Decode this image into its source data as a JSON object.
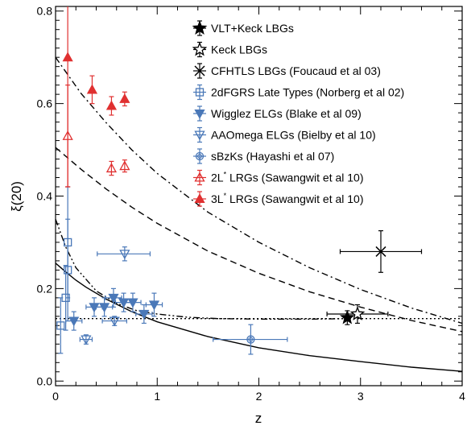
{
  "chart_data": {
    "type": "scatter",
    "xlabel": "z",
    "ylabel_main": "ξ",
    "ylabel_arg": "(20)",
    "xlim": [
      0,
      4
    ],
    "ylim": [
      -0.01,
      0.81
    ],
    "xticks": [
      {
        "value": 0,
        "label": "0"
      },
      {
        "value": 1,
        "label": "1"
      },
      {
        "value": 2,
        "label": "2"
      },
      {
        "value": 3,
        "label": "3"
      },
      {
        "value": 4,
        "label": "4"
      }
    ],
    "yticks": [
      {
        "value": 0.0,
        "label": "0.0"
      },
      {
        "value": 0.2,
        "label": "0.2"
      },
      {
        "value": 0.4,
        "label": "0.4"
      },
      {
        "value": 0.6,
        "label": "0.6"
      },
      {
        "value": 0.8,
        "label": "0.8"
      }
    ],
    "legend_position": "top-center",
    "series": [
      {
        "name": "VLT+Keck LBGs",
        "color": "#000000",
        "marker": "star-filled",
        "points": [
          {
            "x": 2.87,
            "y": 0.137,
            "xlo": 2.87,
            "xhi": 2.87,
            "ylo": 0.122,
            "yhi": 0.152
          }
        ]
      },
      {
        "name": "Keck LBGs",
        "color": "#000000",
        "marker": "star-open",
        "points": [
          {
            "x": 2.97,
            "y": 0.145,
            "xlo": 2.67,
            "xhi": 3.27,
            "ylo": 0.125,
            "yhi": 0.165
          }
        ]
      },
      {
        "name": "CFHTLS LBGs (Foucaud et al 03)",
        "color": "#000000",
        "marker": "asterisk",
        "points": [
          {
            "x": 3.2,
            "y": 0.28,
            "xlo": 2.8,
            "xhi": 3.6,
            "ylo": 0.235,
            "yhi": 0.325
          }
        ]
      },
      {
        "name": "2dFGRS Late Types (Norberg et al 02)",
        "color": "#4a78b8",
        "marker": "square-open",
        "points": [
          {
            "x": 0.05,
            "y": 0.12,
            "xlo": 0.05,
            "xhi": 0.05,
            "ylo": 0.06,
            "yhi": 0.18
          },
          {
            "x": 0.1,
            "y": 0.18,
            "xlo": 0.1,
            "xhi": 0.1,
            "ylo": 0.11,
            "yhi": 0.25
          },
          {
            "x": 0.12,
            "y": 0.24,
            "xlo": 0.12,
            "xhi": 0.12,
            "ylo": 0.13,
            "yhi": 0.35
          },
          {
            "x": 0.12,
            "y": 0.3,
            "xlo": 0.12,
            "xhi": 0.12,
            "ylo": 0.18,
            "yhi": 0.42
          }
        ]
      },
      {
        "name": "Wigglez ELGs (Blake et al 09)",
        "color": "#4a78b8",
        "marker": "down-triangle-filled",
        "points": [
          {
            "x": 0.18,
            "y": 0.13,
            "xlo": 0.1,
            "xhi": 0.26,
            "ylo": 0.11,
            "yhi": 0.15
          },
          {
            "x": 0.38,
            "y": 0.16,
            "xlo": 0.3,
            "xhi": 0.46,
            "ylo": 0.14,
            "yhi": 0.18
          },
          {
            "x": 0.48,
            "y": 0.16,
            "xlo": 0.4,
            "xhi": 0.56,
            "ylo": 0.14,
            "yhi": 0.18
          },
          {
            "x": 0.57,
            "y": 0.18,
            "xlo": 0.49,
            "xhi": 0.65,
            "ylo": 0.16,
            "yhi": 0.2
          },
          {
            "x": 0.67,
            "y": 0.17,
            "xlo": 0.59,
            "xhi": 0.75,
            "ylo": 0.15,
            "yhi": 0.19
          },
          {
            "x": 0.76,
            "y": 0.17,
            "xlo": 0.68,
            "xhi": 0.84,
            "ylo": 0.15,
            "yhi": 0.19
          },
          {
            "x": 0.87,
            "y": 0.145,
            "xlo": 0.79,
            "xhi": 0.95,
            "ylo": 0.125,
            "yhi": 0.165
          },
          {
            "x": 0.97,
            "y": 0.165,
            "xlo": 0.89,
            "xhi": 1.05,
            "ylo": 0.14,
            "yhi": 0.19
          }
        ]
      },
      {
        "name": "AAOmega ELGs (Bielby et al 10)",
        "color": "#4a78b8",
        "marker": "down-triangle-open",
        "points": [
          {
            "x": 0.3,
            "y": 0.09,
            "xlo": 0.24,
            "xhi": 0.36,
            "ylo": 0.08,
            "yhi": 0.1
          },
          {
            "x": 0.58,
            "y": 0.13,
            "xlo": 0.46,
            "xhi": 0.7,
            "ylo": 0.12,
            "yhi": 0.14
          },
          {
            "x": 0.68,
            "y": 0.275,
            "xlo": 0.41,
            "xhi": 0.93,
            "ylo": 0.26,
            "yhi": 0.29
          }
        ]
      },
      {
        "name": "sBzKs (Hayashi et al 07)",
        "color": "#4a78b8",
        "marker": "diamond-open",
        "points": [
          {
            "x": 1.92,
            "y": 0.09,
            "xlo": 1.55,
            "xhi": 2.28,
            "ylo": 0.058,
            "yhi": 0.122
          }
        ]
      },
      {
        "name": "2L",
        "name_sup": "*",
        "name_rest": " LRGs (Sawangwit et al 10)",
        "color": "#e03030",
        "marker": "up-triangle-open",
        "points": [
          {
            "x": 0.12,
            "y": 0.53,
            "xlo": 0.12,
            "xhi": 0.12,
            "ylo": 0.42,
            "yhi": 0.64
          },
          {
            "x": 0.55,
            "y": 0.46,
            "xlo": 0.55,
            "xhi": 0.55,
            "ylo": 0.445,
            "yhi": 0.475
          },
          {
            "x": 0.68,
            "y": 0.465,
            "xlo": 0.68,
            "xhi": 0.68,
            "ylo": 0.452,
            "yhi": 0.478
          }
        ]
      },
      {
        "name": "3L",
        "name_sup": "*",
        "name_rest": " LRGs (Sawangwit et al 10)",
        "color": "#e03030",
        "marker": "up-triangle-filled",
        "points": [
          {
            "x": 0.12,
            "y": 0.7,
            "xlo": 0.12,
            "xhi": 0.12,
            "ylo": 0.42,
            "yhi": 0.98
          },
          {
            "x": 0.36,
            "y": 0.63,
            "xlo": 0.36,
            "xhi": 0.36,
            "ylo": 0.6,
            "yhi": 0.66
          },
          {
            "x": 0.55,
            "y": 0.595,
            "xlo": 0.55,
            "xhi": 0.55,
            "ylo": 0.575,
            "yhi": 0.615
          },
          {
            "x": 0.68,
            "y": 0.61,
            "xlo": 0.68,
            "xhi": 0.68,
            "ylo": 0.595,
            "yhi": 0.625
          }
        ]
      }
    ],
    "curves": [
      {
        "style": "solid",
        "points": [
          [
            0,
            0.255
          ],
          [
            0.1,
            0.236
          ],
          [
            0.2,
            0.218
          ],
          [
            0.3,
            0.203
          ],
          [
            0.5,
            0.177
          ],
          [
            0.75,
            0.15
          ],
          [
            1.0,
            0.128
          ],
          [
            1.5,
            0.096
          ],
          [
            2.0,
            0.072
          ],
          [
            2.5,
            0.055
          ],
          [
            3.0,
            0.042
          ],
          [
            3.5,
            0.03
          ],
          [
            4.0,
            0.021
          ]
        ]
      },
      {
        "style": "dashed",
        "points": [
          [
            0,
            0.505
          ],
          [
            0.25,
            0.458
          ],
          [
            0.5,
            0.415
          ],
          [
            0.75,
            0.376
          ],
          [
            1.0,
            0.341
          ],
          [
            1.5,
            0.281
          ],
          [
            2.0,
            0.233
          ],
          [
            2.5,
            0.193
          ],
          [
            3.0,
            0.16
          ],
          [
            3.5,
            0.131
          ],
          [
            4.0,
            0.107
          ]
        ]
      },
      {
        "style": "dashdot",
        "points": [
          [
            0,
            0.7
          ],
          [
            0.25,
            0.622
          ],
          [
            0.5,
            0.558
          ],
          [
            0.75,
            0.5
          ],
          [
            1.0,
            0.449
          ],
          [
            1.5,
            0.365
          ],
          [
            2.0,
            0.3
          ],
          [
            2.5,
            0.245
          ],
          [
            3.0,
            0.198
          ],
          [
            3.5,
            0.158
          ],
          [
            4.0,
            0.125
          ]
        ]
      },
      {
        "style": "dashdotdot",
        "points": [
          [
            0,
            0.35
          ],
          [
            0.1,
            0.29
          ],
          [
            0.2,
            0.245
          ],
          [
            0.4,
            0.195
          ],
          [
            0.6,
            0.168
          ],
          [
            0.8,
            0.152
          ],
          [
            1.0,
            0.145
          ],
          [
            1.3,
            0.138
          ],
          [
            1.6,
            0.135
          ],
          [
            2.0,
            0.134
          ],
          [
            2.5,
            0.134
          ],
          [
            2.9,
            0.135
          ]
        ]
      },
      {
        "style": "dotted",
        "points": [
          [
            0,
            0.135
          ],
          [
            4.0,
            0.135
          ]
        ]
      }
    ]
  }
}
